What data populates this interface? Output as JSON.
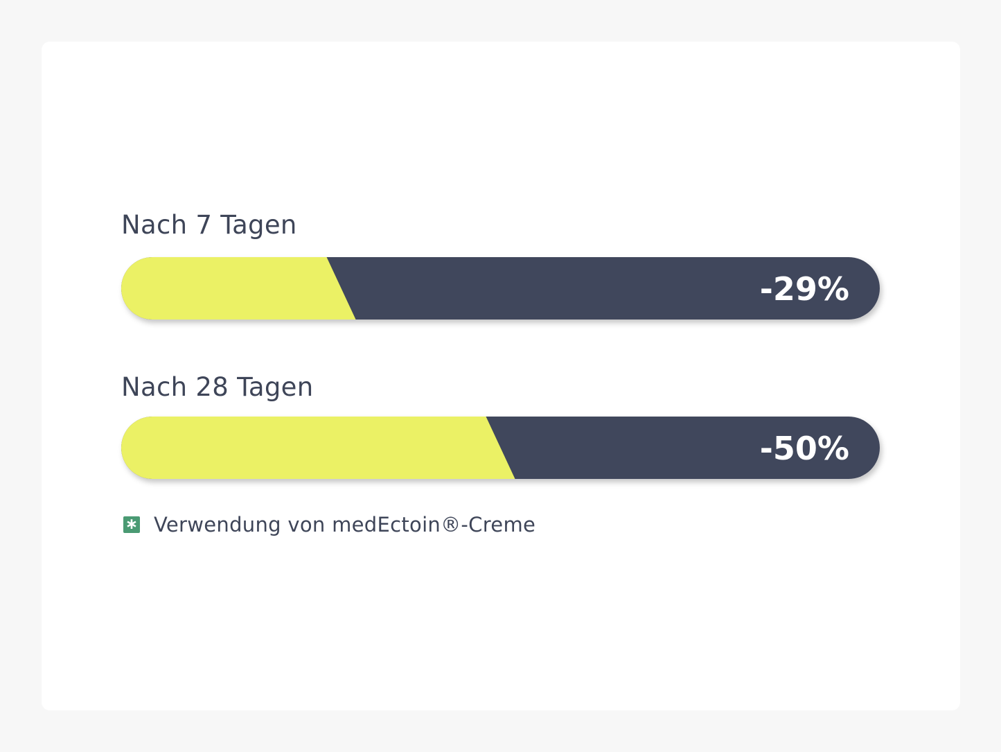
{
  "colors": {
    "background": "#f7f7f7",
    "card": "#ffffff",
    "fill": "#ebf165",
    "track": "#41465b",
    "text": "#3e4558",
    "value_text": "#ffffff",
    "legend_swatch": "#4a9a73"
  },
  "legend": {
    "icon": "asterisk-square-icon",
    "label": "Verwendung von medEctoin®-Creme"
  },
  "chart_data": {
    "type": "bar",
    "orientation": "horizontal",
    "categories": [
      "Nach 7 Tagen",
      "Nach 28 Tagen"
    ],
    "series": [
      {
        "name": "Verwendung von medEctoin®-Creme",
        "values": [
          -29,
          -50
        ],
        "value_labels": [
          "-29%",
          "-50%"
        ]
      }
    ],
    "xlim": [
      0,
      100
    ],
    "grid": false,
    "legend_position": "bottom-left"
  }
}
